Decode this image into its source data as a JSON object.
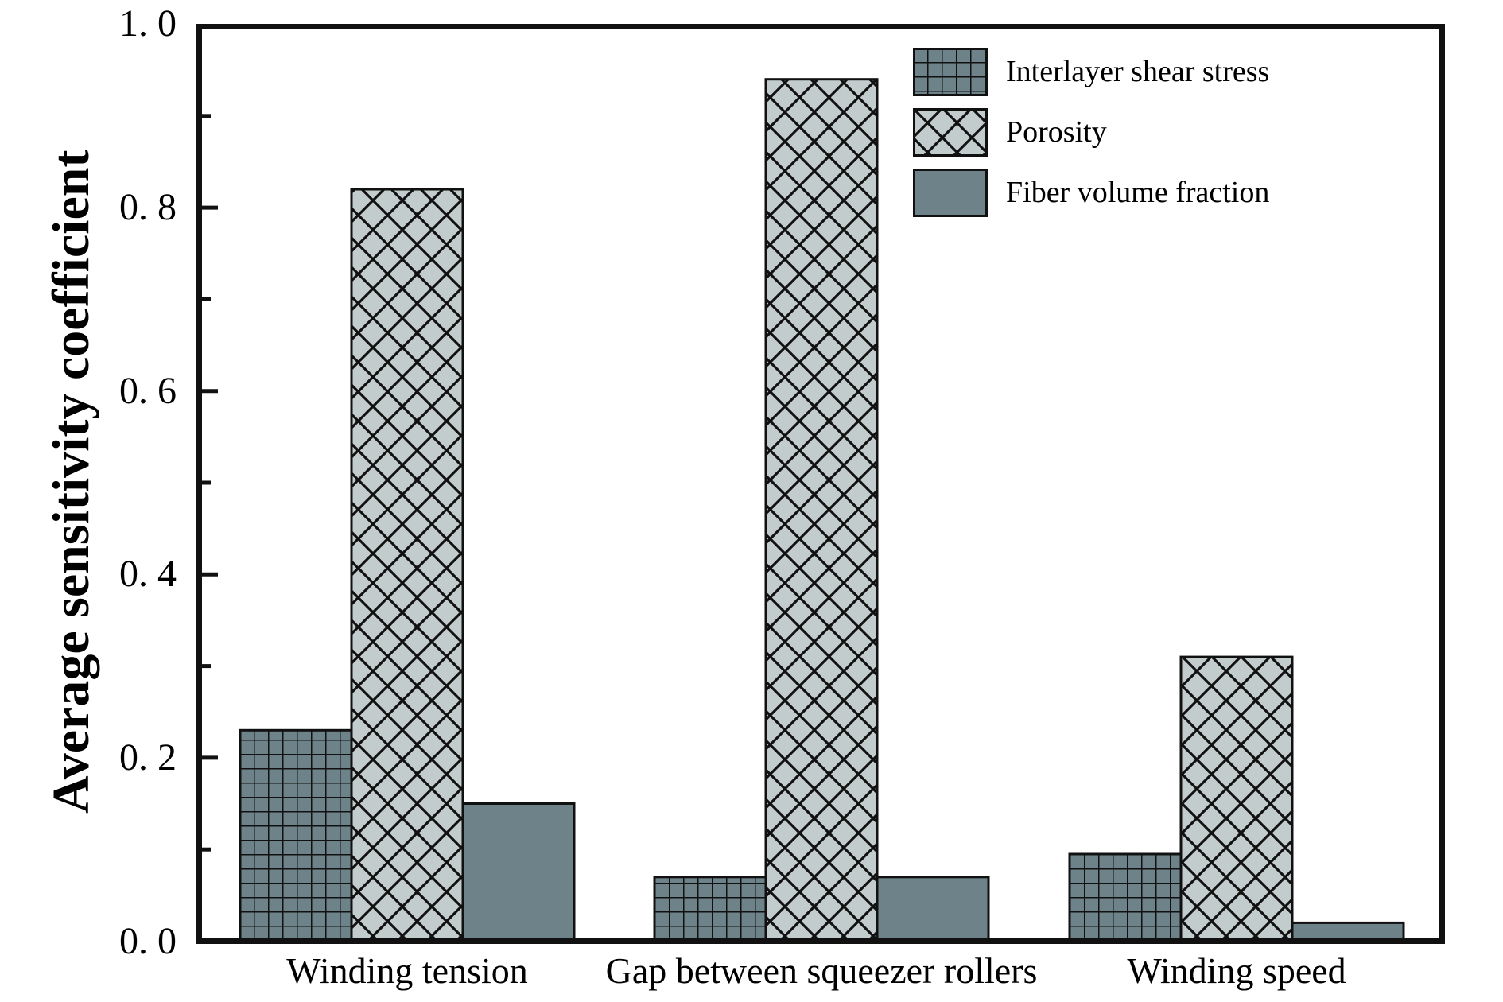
{
  "figure": {
    "background": "#ffffff"
  },
  "chart_data": {
    "type": "bar",
    "title": "",
    "xlabel": "",
    "ylabel": "Average sensitivity coefficient",
    "categories": [
      "Winding tension",
      "Gap between squeezer rollers",
      "Winding speed"
    ],
    "series": [
      {
        "name": "Interlayer shear stress",
        "pattern": "grid",
        "values": [
          0.23,
          0.07,
          0.095
        ]
      },
      {
        "name": "Porosity",
        "pattern": "crosshatch",
        "values": [
          0.82,
          0.94,
          0.31
        ]
      },
      {
        "name": "Fiber volume fraction",
        "pattern": "solid",
        "values": [
          0.15,
          0.07,
          0.02
        ]
      }
    ],
    "ylim": [
      0.0,
      1.0
    ],
    "yticks_major": [
      0.0,
      0.2,
      0.4,
      0.6,
      0.8,
      1.0
    ],
    "ytick_labels": [
      "0. 0",
      "0. 2",
      "0. 4",
      "0. 6",
      "0. 8",
      "1. 0"
    ],
    "yticks_minor": [
      0.1,
      0.3,
      0.5,
      0.7,
      0.9
    ],
    "grid": false,
    "legend_position": "top-right",
    "colors": {
      "slate_fill": "#6d8289",
      "light_fill": "#c2cccc",
      "hatch_line": "#111111",
      "axis_line": "#111111",
      "text": "#000000",
      "background": "#ffffff"
    }
  }
}
